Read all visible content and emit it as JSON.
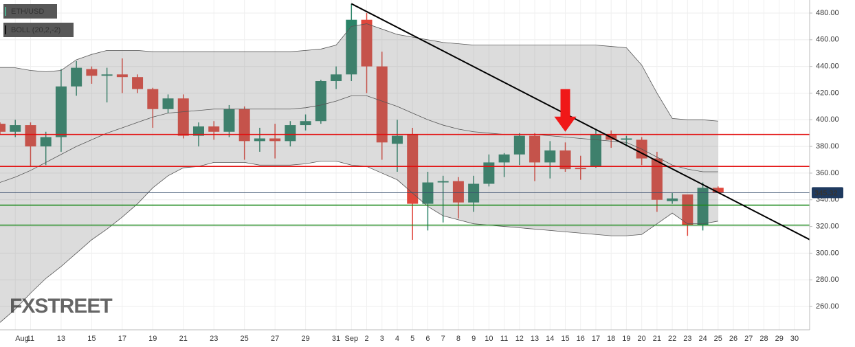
{
  "chart_data": {
    "type": "candlestick",
    "legend": [
      "ETH/USD",
      "BOLL (20,2,-2)"
    ],
    "watermark": "FXSTREET",
    "categories": [
      null,
      "Aug",
      "11",
      null,
      "13",
      null,
      "15",
      null,
      "17",
      null,
      "19",
      null,
      "21",
      null,
      "23",
      null,
      "25",
      null,
      "27",
      null,
      "29",
      null,
      "31",
      "Sep",
      "2",
      "3",
      "4",
      "5",
      "6",
      "7",
      "8",
      "9",
      "10",
      "11",
      "12",
      "13",
      "14",
      "15",
      "16",
      "17",
      "18",
      "19",
      "20",
      "21",
      "22",
      "23",
      "24",
      "25",
      "26",
      "27",
      "28",
      "29",
      "30"
    ],
    "open": [
      397,
      391,
      396,
      380,
      387,
      425,
      438,
      433,
      434,
      432,
      423,
      408,
      416,
      388,
      395,
      391,
      408,
      384,
      386,
      384,
      396,
      399,
      429,
      434,
      475,
      440,
      382,
      389,
      337,
      353,
      354,
      338,
      352,
      368,
      374,
      388,
      368,
      377,
      364,
      365,
      389,
      385,
      385,
      371,
      339,
      344,
      321,
      349,
      null,
      null,
      null,
      null,
      null
    ],
    "high": [
      398,
      400,
      398,
      391,
      438,
      444,
      440,
      439,
      446,
      434,
      424,
      419,
      419,
      398,
      399,
      411,
      410,
      394,
      397,
      399,
      404,
      430,
      440,
      487,
      480,
      451,
      400,
      394,
      361,
      358,
      357,
      358,
      374,
      375,
      390,
      390,
      384,
      383,
      373,
      393,
      392,
      388,
      387,
      376,
      345,
      344,
      353,
      350,
      null,
      null,
      null,
      null,
      null
    ],
    "low": [
      389,
      387,
      365,
      366,
      376,
      418,
      427,
      413,
      420,
      420,
      394,
      405,
      386,
      380,
      385,
      387,
      370,
      376,
      371,
      380,
      392,
      397,
      423,
      429,
      420,
      370,
      361,
      310,
      317,
      323,
      326,
      331,
      350,
      357,
      366,
      354,
      356,
      361,
      355,
      364,
      379,
      380,
      366,
      331,
      337,
      313,
      317,
      345,
      null,
      null,
      null,
      null,
      null
    ],
    "close": [
      391,
      396,
      380,
      387,
      425,
      439,
      433,
      434,
      432,
      423,
      408,
      416,
      388,
      395,
      391,
      408,
      384,
      386,
      384,
      396,
      399,
      429,
      434,
      475,
      440,
      383,
      388,
      337,
      353,
      354,
      338,
      352,
      368,
      374,
      388,
      368,
      377,
      363,
      363,
      389,
      385,
      386,
      371,
      340,
      341,
      321,
      349,
      345.32,
      null,
      null,
      null,
      null,
      null
    ],
    "bollinger": {
      "upper": [
        439,
        439,
        437,
        436,
        437,
        445,
        449,
        452,
        452,
        452,
        451,
        451,
        451,
        451,
        451,
        451,
        451,
        451,
        451,
        451,
        452,
        453,
        456,
        470,
        472,
        468,
        464,
        462,
        460,
        458,
        457,
        456,
        456,
        456,
        456,
        456,
        456,
        456,
        456,
        456,
        455,
        454,
        441,
        420,
        401,
        400,
        400,
        399,
        null,
        null,
        null,
        null,
        null
      ],
      "middle": [
        353,
        357,
        362,
        368,
        374,
        380,
        385,
        390,
        394,
        398,
        402,
        405,
        406,
        407,
        408,
        408,
        408,
        408,
        408,
        408,
        409,
        411,
        414,
        418,
        418,
        414,
        410,
        405,
        400,
        396,
        393,
        391,
        390,
        389,
        389,
        389,
        388,
        387,
        386,
        385,
        384,
        383,
        378,
        372,
        366,
        363,
        361,
        361,
        null,
        null,
        null,
        null,
        null
      ],
      "lower": [
        248,
        258,
        270,
        281,
        290,
        300,
        310,
        318,
        327,
        337,
        349,
        358,
        364,
        365,
        368,
        368,
        368,
        366,
        366,
        366,
        367,
        369,
        369,
        366,
        365,
        360,
        355,
        345,
        335,
        328,
        325,
        322,
        321,
        320,
        319,
        318,
        317,
        316,
        315,
        314,
        313,
        313,
        314,
        322,
        330,
        322,
        322,
        324,
        null,
        null,
        null,
        null,
        null
      ]
    },
    "up_color": "#2b8468",
    "down_color": "#e0473c",
    "resistance_levels": [
      389,
      365
    ],
    "resistance_color": "#e31010",
    "support_levels": [
      336,
      321
    ],
    "support_color": "#1f8a1f",
    "last_price": 345.32,
    "trendline": {
      "start": {
        "index": 23,
        "value": 487
      },
      "end": {
        "index": 52,
        "value": 316
      }
    },
    "arrow": {
      "index": 37,
      "value": 391,
      "color": "#f01818"
    },
    "ylim": [
      242.5,
      489.8
    ],
    "yticks": [
      {
        "value": 260,
        "label": "260.00"
      },
      {
        "value": 280,
        "label": "280.00"
      },
      {
        "value": 300,
        "label": "300.00"
      },
      {
        "value": 320,
        "label": "320.00"
      },
      {
        "value": 340,
        "label": "340.00"
      },
      {
        "value": 360,
        "label": "360.00"
      },
      {
        "value": 380,
        "label": "380.00"
      },
      {
        "value": 400,
        "label": "400.00"
      },
      {
        "value": 420,
        "label": "420.00"
      },
      {
        "value": 440,
        "label": "440.00"
      },
      {
        "value": 460,
        "label": "460.00"
      },
      {
        "value": 480,
        "label": "480.00"
      }
    ],
    "grid": true
  }
}
